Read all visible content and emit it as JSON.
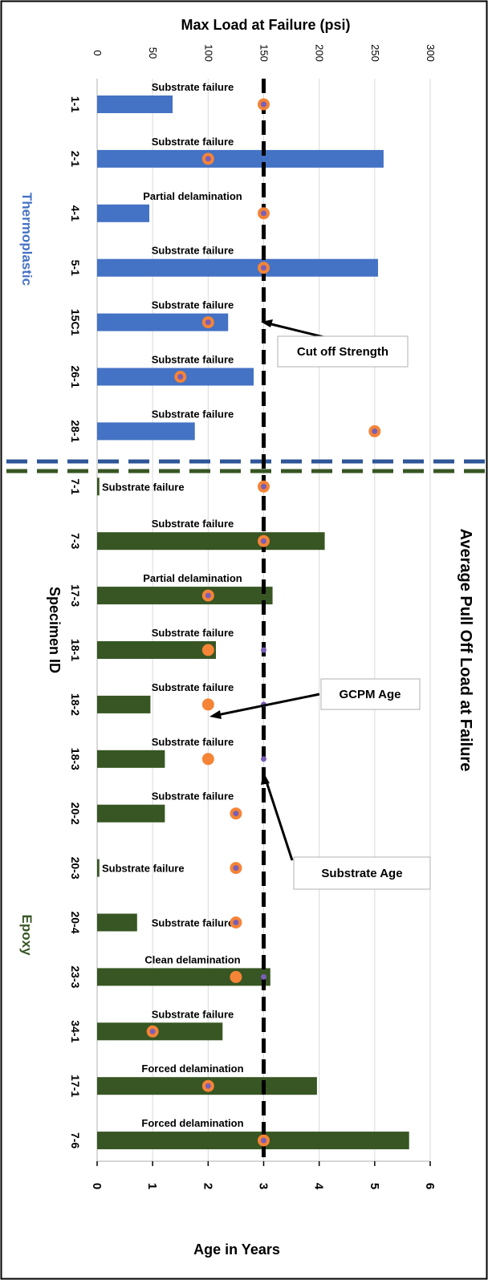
{
  "chart_data": {
    "type": "bar",
    "orientation": "horizontal",
    "title": "Average Pull Off Load at Failure",
    "top_axis": {
      "label": "Max Load at Failure (psi)",
      "range": [
        0,
        300
      ],
      "ticks": [
        "0",
        "50",
        "100",
        "150",
        "200",
        "250",
        "300"
      ]
    },
    "bottom_axis": {
      "label": "Age in Years",
      "range": [
        0,
        6
      ],
      "ticks": [
        "0",
        "1",
        "2",
        "3",
        "4",
        "5",
        "6"
      ]
    },
    "category_axis_label": "Specimen ID",
    "grid": true,
    "groups": [
      {
        "name": "Thermoplastic",
        "color": "#4472c4"
      },
      {
        "name": "Epoxy",
        "color": "#375623"
      }
    ],
    "cutoff_strength_psi": 150,
    "series": [
      {
        "name": "Max Load at Failure (psi)",
        "unit": "psi",
        "marker": "bar"
      },
      {
        "name": "GCPM Age",
        "unit": "years",
        "marker": "orange-dot"
      },
      {
        "name": "Substrate Age",
        "unit": "years",
        "marker": "purple-dot"
      }
    ],
    "specimens": [
      {
        "id": "1-1",
        "group": "Thermoplastic",
        "load": 68,
        "gcpm": 3,
        "substrate": 3,
        "annotation": "Substrate failure"
      },
      {
        "id": "2-1",
        "group": "Thermoplastic",
        "load": 258,
        "gcpm": 2,
        "substrate": 2,
        "annotation": "Substrate failure"
      },
      {
        "id": "4-1",
        "group": "Thermoplastic",
        "load": 47,
        "gcpm": 3,
        "substrate": 3,
        "annotation": "Partial delamination"
      },
      {
        "id": "5-1",
        "group": "Thermoplastic",
        "load": 253,
        "gcpm": 3,
        "substrate": 3,
        "annotation": "Substrate failure"
      },
      {
        "id": "15C1",
        "group": "Thermoplastic",
        "load": 118,
        "gcpm": 2,
        "substrate": 2,
        "annotation": "Substrate failure"
      },
      {
        "id": "26-1",
        "group": "Thermoplastic",
        "load": 141,
        "gcpm": 1.5,
        "substrate": 1.5,
        "annotation": "Substrate failure"
      },
      {
        "id": "28-1",
        "group": "Thermoplastic",
        "load": 88,
        "gcpm": 5,
        "substrate": 5,
        "annotation": "Substrate failure"
      },
      {
        "id": "7-1",
        "group": "Epoxy",
        "load": 2,
        "gcpm": 3,
        "substrate": 3,
        "annotation": "Substrate failure"
      },
      {
        "id": "7-3",
        "group": "Epoxy",
        "load": 205,
        "gcpm": 3,
        "substrate": 3,
        "annotation": "Substrate failure"
      },
      {
        "id": "17-3",
        "group": "Epoxy",
        "load": 158,
        "gcpm": 2,
        "substrate": 2,
        "annotation": "Partial delamination"
      },
      {
        "id": "18-1",
        "group": "Epoxy",
        "load": 107,
        "gcpm": 2,
        "substrate": 3,
        "annotation": "Substrate failure"
      },
      {
        "id": "18-2",
        "group": "Epoxy",
        "load": 48,
        "gcpm": 2,
        "substrate": 3,
        "annotation": "Substrate failure"
      },
      {
        "id": "18-3",
        "group": "Epoxy",
        "load": 61,
        "gcpm": 2,
        "substrate": 3,
        "annotation": "Substrate failure"
      },
      {
        "id": "20-2",
        "group": "Epoxy",
        "load": 61,
        "gcpm": 2.5,
        "substrate": 2.5,
        "annotation": "Substrate failure"
      },
      {
        "id": "20-3",
        "group": "Epoxy",
        "load": 2,
        "gcpm": 2.5,
        "substrate": 2.5,
        "annotation": "Substrate failure"
      },
      {
        "id": "20-4",
        "group": "Epoxy",
        "load": 36,
        "gcpm": 2.5,
        "substrate": 2.5,
        "annotation": "Substrate failure"
      },
      {
        "id": "23-3",
        "group": "Epoxy",
        "load": 156,
        "gcpm": 2.5,
        "substrate": 3,
        "annotation": "Clean delamination"
      },
      {
        "id": "34-1",
        "group": "Epoxy",
        "load": 113,
        "gcpm": 1,
        "substrate": 1,
        "annotation": "Substrate failure"
      },
      {
        "id": "17-1",
        "group": "Epoxy",
        "load": 198,
        "gcpm": 2,
        "substrate": 2,
        "annotation": "Forced delamination"
      },
      {
        "id": "7-6",
        "group": "Epoxy",
        "load": 281,
        "gcpm": 3,
        "substrate": 3,
        "annotation": "Forced delamination"
      }
    ],
    "callouts": [
      "Cut off Strength",
      "GCPM Age",
      "Substrate Age"
    ],
    "colors": {
      "thermoplastic": "#4472c4",
      "epoxy": "#375623",
      "gcpm_dot": "#f58436",
      "substrate_dot": "#7b5fb6",
      "grid": "#d9d9d9"
    }
  }
}
